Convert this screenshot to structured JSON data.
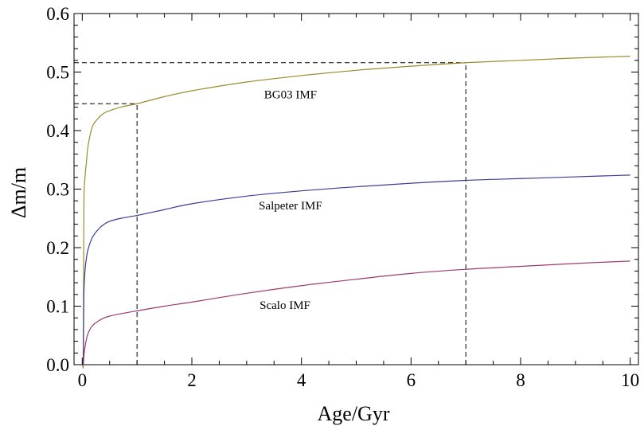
{
  "chart_data": {
    "type": "line",
    "title": "",
    "xlabel": "Age/Gyr",
    "ylabel": "Δm/m",
    "xlim": [
      -0.15,
      10.15
    ],
    "ylim": [
      0,
      0.6
    ],
    "x_ticks": [
      0,
      2,
      4,
      6,
      8,
      10
    ],
    "x_tick_labels": [
      "0",
      "2",
      "4",
      "6",
      "8",
      "10"
    ],
    "y_ticks": [
      0.0,
      0.1,
      0.2,
      0.3,
      0.4,
      0.5,
      0.6
    ],
    "y_tick_labels": [
      "0.0",
      "0.1",
      "0.2",
      "0.3",
      "0.4",
      "0.5",
      "0.6"
    ],
    "grid": false,
    "legend": "none",
    "x": [
      0.02,
      0.03,
      0.05,
      0.08,
      0.1,
      0.15,
      0.2,
      0.3,
      0.4,
      0.5,
      0.7,
      1.0,
      1.5,
      2,
      3,
      4,
      5,
      6,
      7,
      8,
      9,
      10
    ],
    "series": [
      {
        "name": "BG03 IMF",
        "color": "#9a8b2c",
        "values": [
          0.02,
          0.27,
          0.32,
          0.35,
          0.37,
          0.395,
          0.41,
          0.422,
          0.43,
          0.434,
          0.44,
          0.446,
          0.458,
          0.468,
          0.483,
          0.494,
          0.503,
          0.51,
          0.516,
          0.52,
          0.524,
          0.527
        ]
      },
      {
        "name": "Salpeter IMF",
        "color": "#3b3b96",
        "values": [
          0.02,
          0.12,
          0.16,
          0.185,
          0.195,
          0.21,
          0.22,
          0.232,
          0.24,
          0.245,
          0.25,
          0.255,
          0.265,
          0.275,
          0.288,
          0.297,
          0.304,
          0.31,
          0.315,
          0.318,
          0.321,
          0.324
        ]
      },
      {
        "name": "Scalo IMF",
        "color": "#9b3a6e",
        "values": [
          0.0,
          0.015,
          0.03,
          0.045,
          0.052,
          0.062,
          0.068,
          0.075,
          0.08,
          0.083,
          0.087,
          0.092,
          0.1,
          0.107,
          0.122,
          0.135,
          0.146,
          0.156,
          0.163,
          0.168,
          0.173,
          0.177
        ]
      }
    ],
    "series_labels": [
      {
        "text": "BG03 IMF",
        "x": 3.8,
        "y": 0.455
      },
      {
        "text": "Salpeter IMF",
        "x": 3.8,
        "y": 0.265
      },
      {
        "text": "Scalo IMF",
        "x": 3.7,
        "y": 0.095
      }
    ],
    "annotations": [
      {
        "type": "dashed-guide",
        "x": 1,
        "y": 0.446
      },
      {
        "type": "dashed-guide",
        "x": 7,
        "y": 0.516
      }
    ]
  }
}
